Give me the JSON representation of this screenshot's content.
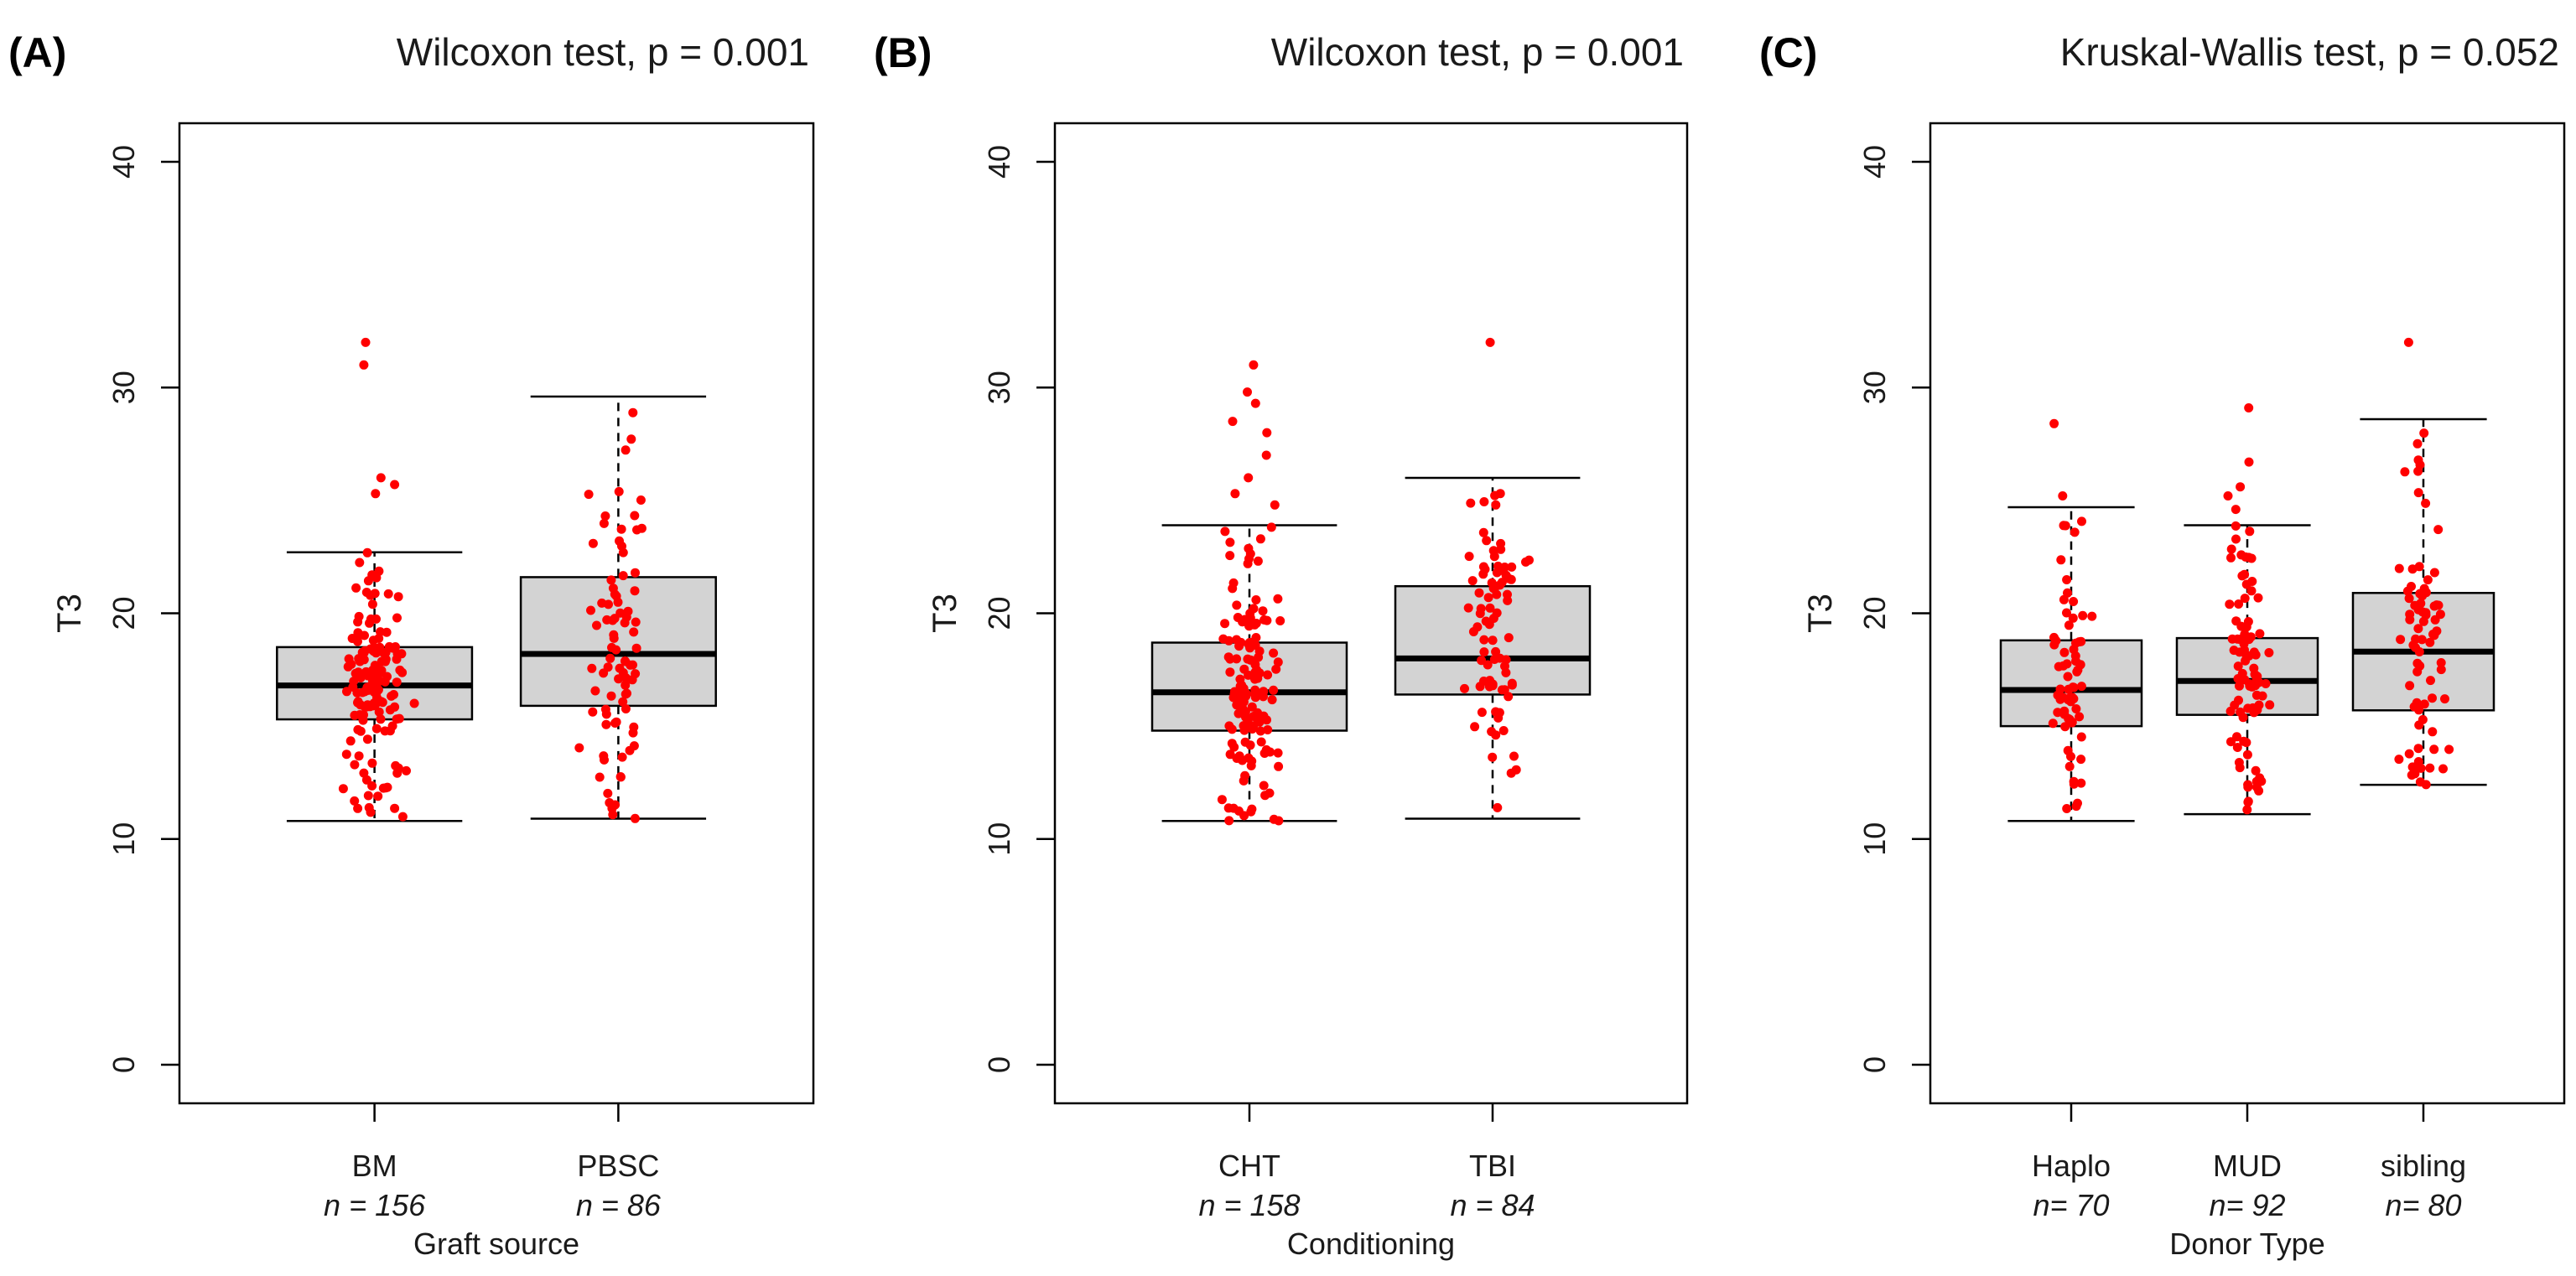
{
  "chart_data": [
    {
      "panel_label": "(A)",
      "type": "boxplot",
      "title": "Wilcoxon test, p = 0.001",
      "xlabel": "Graft source",
      "ylabel": "T3",
      "ylim": [
        0,
        40
      ],
      "yticks": [
        "0",
        "10",
        "20",
        "30",
        "40"
      ],
      "categories": [
        "BM",
        "PBSC"
      ],
      "n_labels": [
        "n = 156",
        "n = 86"
      ],
      "boxes": [
        {
          "whisker_low": 10.8,
          "q1": 15.3,
          "median": 16.8,
          "q3": 18.5,
          "whisker_high": 22.7
        },
        {
          "whisker_low": 10.9,
          "q1": 15.9,
          "median": 18.2,
          "q3": 21.6,
          "whisker_high": 29.6
        }
      ],
      "outliers": [
        [
          32.0,
          31.0,
          26.0,
          25.7,
          25.3
        ],
        []
      ]
    },
    {
      "panel_label": "(B)",
      "type": "boxplot",
      "title": "Wilcoxon test, p = 0.001",
      "xlabel": "Conditioning",
      "ylabel": "T3",
      "ylim": [
        0,
        40
      ],
      "yticks": [
        "0",
        "10",
        "20",
        "30",
        "40"
      ],
      "categories": [
        "CHT",
        "TBI"
      ],
      "n_labels": [
        "n = 158",
        "n = 84"
      ],
      "boxes": [
        {
          "whisker_low": 10.8,
          "q1": 14.8,
          "median": 16.5,
          "q3": 18.7,
          "whisker_high": 23.9
        },
        {
          "whisker_low": 10.9,
          "q1": 16.4,
          "median": 18.0,
          "q3": 21.2,
          "whisker_high": 26.0
        }
      ],
      "outliers": [
        [
          31.0,
          29.8,
          29.3,
          28.5,
          28.0,
          27.0,
          26.0,
          25.3,
          24.8
        ],
        [
          32.0
        ]
      ]
    },
    {
      "panel_label": "(C)",
      "type": "boxplot",
      "title": "Kruskal-Wallis test, p = 0.052",
      "xlabel": "Donor Type",
      "ylabel": "T3",
      "ylim": [
        0,
        40
      ],
      "yticks": [
        "0",
        "10",
        "20",
        "30",
        "40"
      ],
      "categories": [
        "Haplo",
        "MUD",
        "sibling"
      ],
      "n_labels": [
        "n= 70",
        "n= 92",
        "n= 80"
      ],
      "boxes": [
        {
          "whisker_low": 10.8,
          "q1": 15.0,
          "median": 16.6,
          "q3": 18.8,
          "whisker_high": 24.7
        },
        {
          "whisker_low": 11.1,
          "q1": 15.5,
          "median": 17.0,
          "q3": 18.9,
          "whisker_high": 23.9
        },
        {
          "whisker_low": 12.4,
          "q1": 15.7,
          "median": 18.3,
          "q3": 20.9,
          "whisker_high": 28.6
        }
      ],
      "outliers": [
        [
          28.4,
          25.2
        ],
        [
          29.1,
          26.7,
          25.6,
          25.2,
          24.6
        ],
        [
          32.0
        ]
      ]
    }
  ],
  "colors": {
    "box_fill": "#d3d3d3",
    "box_stroke": "#000000",
    "points": "#ff0000",
    "text": "#1a1a1a"
  }
}
